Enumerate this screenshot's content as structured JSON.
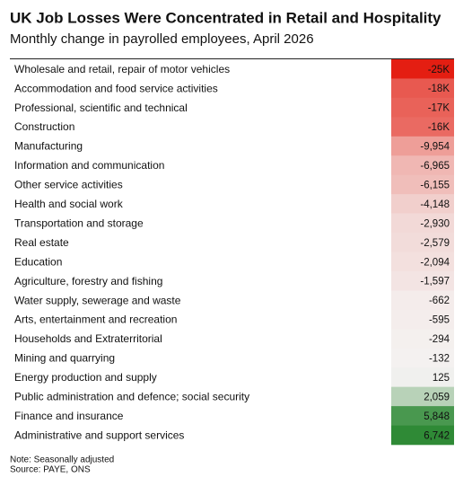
{
  "chart_data": {
    "type": "heatmap-table",
    "title": "UK Job Losses Were Concentrated in Retail and Hospitality",
    "subtitle": "Monthly change in payrolled employees, April 2026",
    "categories": [
      "Wholesale and retail, repair of motor vehicles",
      "Accommodation and food service activities",
      "Professional, scientific and technical",
      "Construction",
      "Manufacturing",
      "Information and communication",
      "Other service activities",
      "Health and social work",
      "Transportation and storage",
      "Real estate",
      "Education",
      "Agriculture, forestry and fishing",
      "Water supply, sewerage and waste",
      "Arts, entertainment and recreation",
      "Households and Extraterritorial",
      "Mining and quarrying",
      "Energy production and supply",
      "Public administration and defence; social security",
      "Finance and insurance",
      "Administrative and support services"
    ],
    "values": [
      -25000,
      -18000,
      -17000,
      -16000,
      -9954,
      -6965,
      -6155,
      -4148,
      -2930,
      -2579,
      -2094,
      -1597,
      -662,
      -595,
      -294,
      -132,
      125,
      2059,
      5848,
      6742
    ],
    "value_labels": [
      "-25K",
      "-18K",
      "-17K",
      "-16K",
      "-9,954",
      "-6,965",
      "-6,155",
      "-4,148",
      "-2,930",
      "-2,579",
      "-2,094",
      "-1,597",
      "-662",
      "-595",
      "-294",
      "-132",
      "125",
      "2,059",
      "5,848",
      "6,742"
    ],
    "negative_color": "#e41e12",
    "neutral_color": "#f4f2f1",
    "positive_color": "#2f8a36",
    "notes": [
      "Note: Seasonally adjusted",
      "Source: PAYE, ONS"
    ]
  }
}
